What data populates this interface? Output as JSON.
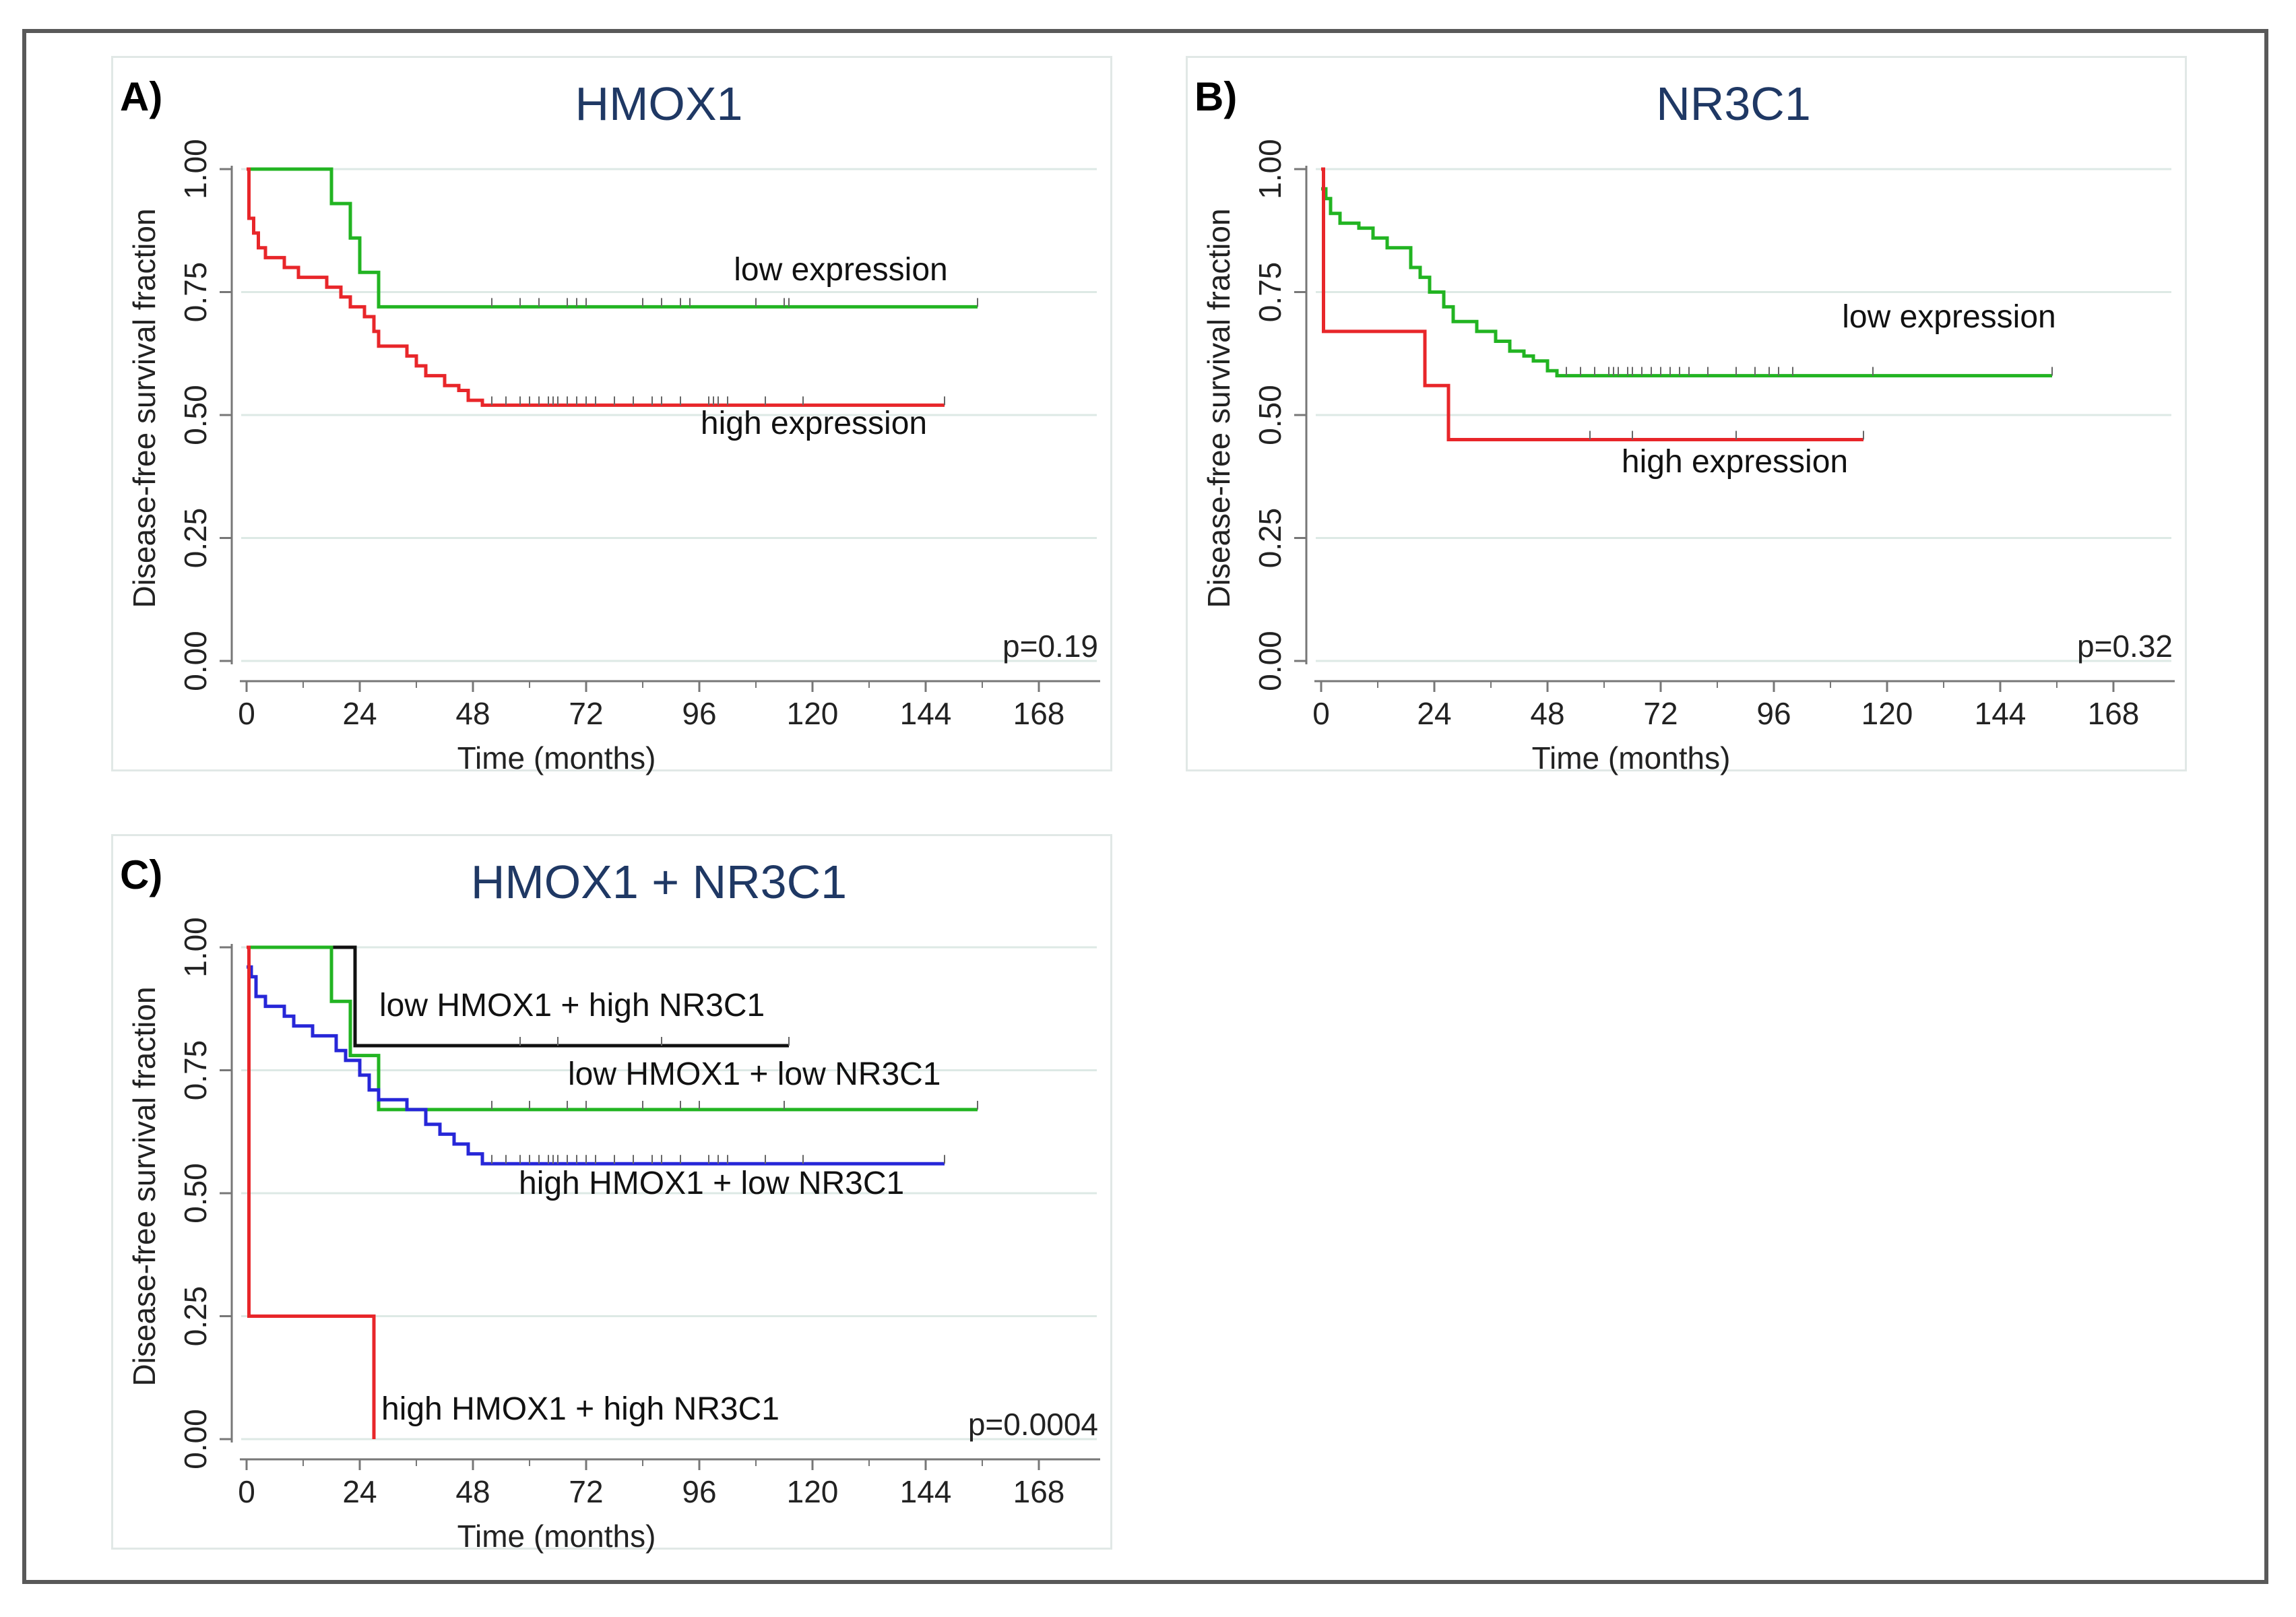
{
  "chart_data": [
    {
      "type": "line",
      "panel_label": "A)",
      "title": "HMOX1",
      "xlabel": "Time (months)",
      "ylabel": "Disease-free survival fraction",
      "xticks": [
        0,
        24,
        48,
        72,
        96,
        120,
        144,
        168
      ],
      "yticks": [
        "0.00",
        "0.25",
        "0.50",
        "0.75",
        "1.00"
      ],
      "xlim": [
        0,
        176
      ],
      "ylim": [
        0,
        1
      ],
      "grid": true,
      "p_value": "p=0.19",
      "series": [
        {
          "name": "low expression",
          "color": "#22b422",
          "steps": [
            [
              0,
              1.0
            ],
            [
              18,
              0.93
            ],
            [
              22,
              0.86
            ],
            [
              24,
              0.79
            ],
            [
              28,
              0.72
            ],
            [
              155,
              0.72
            ]
          ],
          "censor": [
            52,
            58,
            62,
            68,
            70,
            72,
            84,
            88,
            92,
            94,
            108,
            114,
            115,
            155
          ]
        },
        {
          "name": "high expression",
          "color": "#e8262a",
          "steps": [
            [
              0,
              1.0
            ],
            [
              0.5,
              0.9
            ],
            [
              1.5,
              0.87
            ],
            [
              2.5,
              0.84
            ],
            [
              4,
              0.82
            ],
            [
              8,
              0.8
            ],
            [
              11,
              0.78
            ],
            [
              17,
              0.76
            ],
            [
              20,
              0.74
            ],
            [
              22,
              0.72
            ],
            [
              25,
              0.7
            ],
            [
              27,
              0.67
            ],
            [
              28,
              0.64
            ],
            [
              34,
              0.62
            ],
            [
              36,
              0.6
            ],
            [
              38,
              0.58
            ],
            [
              42,
              0.56
            ],
            [
              45,
              0.55
            ],
            [
              47,
              0.53
            ],
            [
              50,
              0.52
            ],
            [
              148,
              0.52
            ]
          ],
          "censor": [
            52,
            55,
            58,
            60,
            62,
            64,
            65,
            66,
            68,
            70,
            72,
            74,
            78,
            82,
            86,
            88,
            92,
            98,
            99,
            100,
            102,
            110,
            118,
            148
          ]
        }
      ]
    },
    {
      "type": "line",
      "panel_label": "B)",
      "title": "NR3C1",
      "xlabel": "Time (months)",
      "ylabel": "Disease-free survival fraction",
      "xticks": [
        0,
        24,
        48,
        72,
        96,
        120,
        144,
        168
      ],
      "yticks": [
        "0.00",
        "0.25",
        "0.50",
        "0.75",
        "1.00"
      ],
      "xlim": [
        0,
        176
      ],
      "ylim": [
        0,
        1
      ],
      "grid": true,
      "p_value": "p=0.32",
      "series": [
        {
          "name": "low expression",
          "color": "#22b422",
          "steps": [
            [
              0,
              0.96
            ],
            [
              1,
              0.94
            ],
            [
              2,
              0.91
            ],
            [
              4,
              0.89
            ],
            [
              8,
              0.88
            ],
            [
              11,
              0.86
            ],
            [
              14,
              0.84
            ],
            [
              19,
              0.8
            ],
            [
              21,
              0.78
            ],
            [
              23,
              0.75
            ],
            [
              26,
              0.72
            ],
            [
              28,
              0.69
            ],
            [
              33,
              0.67
            ],
            [
              37,
              0.65
            ],
            [
              40,
              0.63
            ],
            [
              43,
              0.62
            ],
            [
              45,
              0.61
            ],
            [
              48,
              0.59
            ],
            [
              50,
              0.58
            ],
            [
              155,
              0.58
            ]
          ],
          "censor": [
            52,
            55,
            58,
            61,
            62,
            63,
            65,
            66,
            68,
            70,
            72,
            74,
            76,
            78,
            82,
            88,
            92,
            95,
            97,
            100,
            117,
            155
          ]
        },
        {
          "name": "high expression",
          "color": "#e8262a",
          "steps": [
            [
              0,
              1.0
            ],
            [
              0.5,
              0.67
            ],
            [
              22,
              0.56
            ],
            [
              27,
              0.45
            ],
            [
              115,
              0.45
            ]
          ],
          "censor": [
            57,
            66,
            88,
            115
          ]
        }
      ]
    },
    {
      "type": "line",
      "panel_label": "C)",
      "title": "HMOX1 + NR3C1",
      "xlabel": "Time (months)",
      "ylabel": "Disease-free survival fraction",
      "xticks": [
        0,
        24,
        48,
        72,
        96,
        120,
        144,
        168
      ],
      "yticks": [
        "0.00",
        "0.25",
        "0.50",
        "0.75",
        "1.00"
      ],
      "xlim": [
        0,
        176
      ],
      "ylim": [
        0,
        1
      ],
      "grid": true,
      "p_value": "p=0.0004",
      "series": [
        {
          "name": "low HMOX1 + high NR3C1",
          "color": "#111111",
          "steps": [
            [
              0,
              1.0
            ],
            [
              23,
              0.8
            ],
            [
              115,
              0.8
            ]
          ],
          "censor": [
            58,
            66,
            88,
            115
          ]
        },
        {
          "name": "low HMOX1 + low NR3C1",
          "color": "#22b422",
          "steps": [
            [
              0,
              1.0
            ],
            [
              18,
              0.89
            ],
            [
              22,
              0.78
            ],
            [
              28,
              0.67
            ],
            [
              155,
              0.67
            ]
          ],
          "censor": [
            52,
            60,
            68,
            72,
            84,
            92,
            96,
            114,
            155
          ]
        },
        {
          "name": "high HMOX1 + low NR3C1",
          "color": "#2727d8",
          "steps": [
            [
              0,
              0.96
            ],
            [
              1,
              0.94
            ],
            [
              2,
              0.9
            ],
            [
              4,
              0.88
            ],
            [
              8,
              0.86
            ],
            [
              10,
              0.84
            ],
            [
              14,
              0.82
            ],
            [
              19,
              0.79
            ],
            [
              21,
              0.77
            ],
            [
              24,
              0.74
            ],
            [
              26,
              0.71
            ],
            [
              28,
              0.69
            ],
            [
              34,
              0.67
            ],
            [
              38,
              0.64
            ],
            [
              41,
              0.62
            ],
            [
              44,
              0.6
            ],
            [
              47,
              0.58
            ],
            [
              50,
              0.56
            ],
            [
              148,
              0.56
            ]
          ],
          "censor": [
            52,
            55,
            58,
            60,
            62,
            64,
            65,
            66,
            68,
            70,
            72,
            74,
            78,
            82,
            86,
            88,
            92,
            98,
            100,
            102,
            110,
            118,
            148
          ]
        },
        {
          "name": "high HMOX1 + high NR3C1",
          "color": "#e8262a",
          "steps": [
            [
              0,
              1.0
            ],
            [
              0.5,
              0.25
            ],
            [
              27,
              0.0
            ]
          ],
          "censor": []
        }
      ]
    }
  ]
}
